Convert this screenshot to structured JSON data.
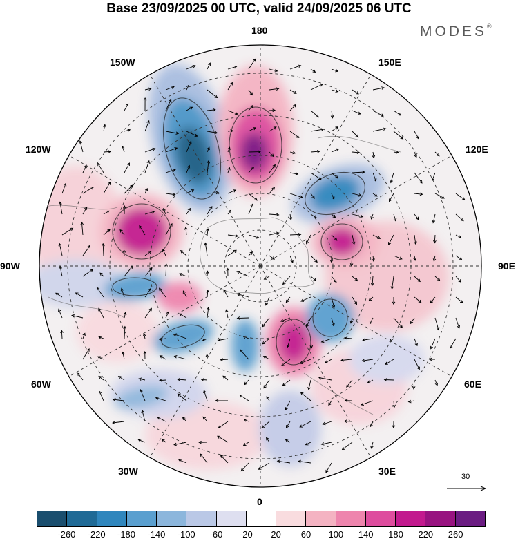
{
  "header": {
    "title": "Base 23/09/2025 00 UTC, valid 24/09/2025 06 UTC"
  },
  "brand": {
    "name": "MODES",
    "mark": "®"
  },
  "map": {
    "projection": "North polar stereographic",
    "longitude_labels": {
      "top": "180",
      "bottom": "0",
      "left": "90W",
      "right": "90E",
      "w150": "150W",
      "e150": "150E",
      "w120": "120W",
      "e120": "120E",
      "w60": "60W",
      "e60": "60E",
      "w30": "30W",
      "e30": "30E"
    }
  },
  "reference_vector": {
    "value": "30"
  },
  "colorbar": {
    "ticks": [
      "-260",
      "-220",
      "-180",
      "-140",
      "-100",
      "-60",
      "-20",
      "20",
      "60",
      "100",
      "140",
      "180",
      "220",
      "260"
    ],
    "colors": [
      "#1a4e6e",
      "#1f6a96",
      "#2f86bd",
      "#5a9fcf",
      "#8cb6dc",
      "#bac8e6",
      "#dedff0",
      "#ffffff",
      "#f9dcdf",
      "#f4b3c2",
      "#ee85ad",
      "#de4d9e",
      "#c21a8e",
      "#981380",
      "#6b1c82"
    ]
  }
}
